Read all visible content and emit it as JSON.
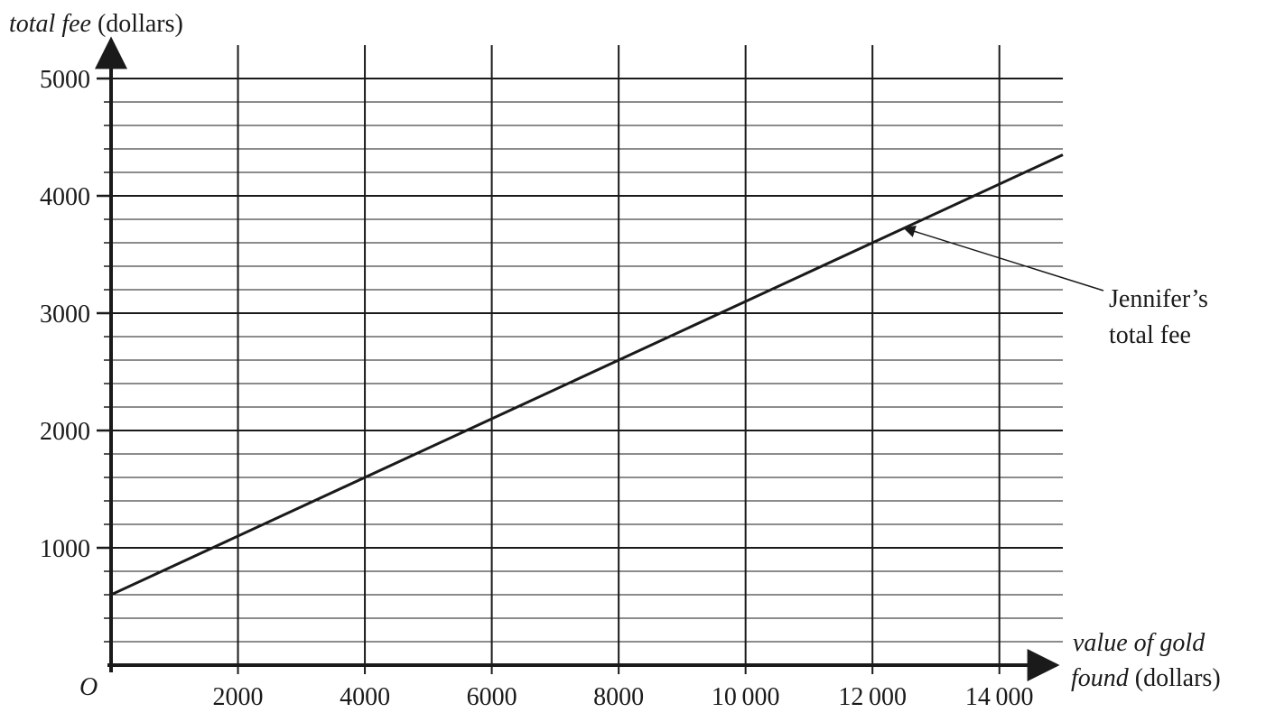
{
  "chart_data": {
    "type": "line",
    "ylabel": {
      "italic": "total fee",
      "plain": " (dollars)"
    },
    "xlabel": {
      "line1": "value of gold",
      "line2_italic": "found",
      "line2_plain": " (dollars)"
    },
    "origin_label": "O",
    "x_ticks": [
      "2000",
      "4000",
      "6000",
      "8000",
      "10 000",
      "12 000",
      "14 000"
    ],
    "x_tick_values": [
      2000,
      4000,
      6000,
      8000,
      10000,
      12000,
      14000
    ],
    "y_ticks": [
      "1000",
      "2000",
      "3000",
      "4000",
      "5000"
    ],
    "y_tick_values": [
      1000,
      2000,
      3000,
      4000,
      5000
    ],
    "xlim": [
      0,
      15000
    ],
    "ylim": [
      0,
      5000
    ],
    "x_minor_step": 2000,
    "y_minor_step": 200,
    "grid": true,
    "series": [
      {
        "name": "Jennifer’s total fee",
        "x": [
          0,
          15000
        ],
        "y": [
          600,
          4350
        ]
      }
    ],
    "annotation": {
      "lines": [
        "Jennifer’s",
        "total fee"
      ],
      "points_to": {
        "x": 12500,
        "y": 3725
      }
    }
  }
}
